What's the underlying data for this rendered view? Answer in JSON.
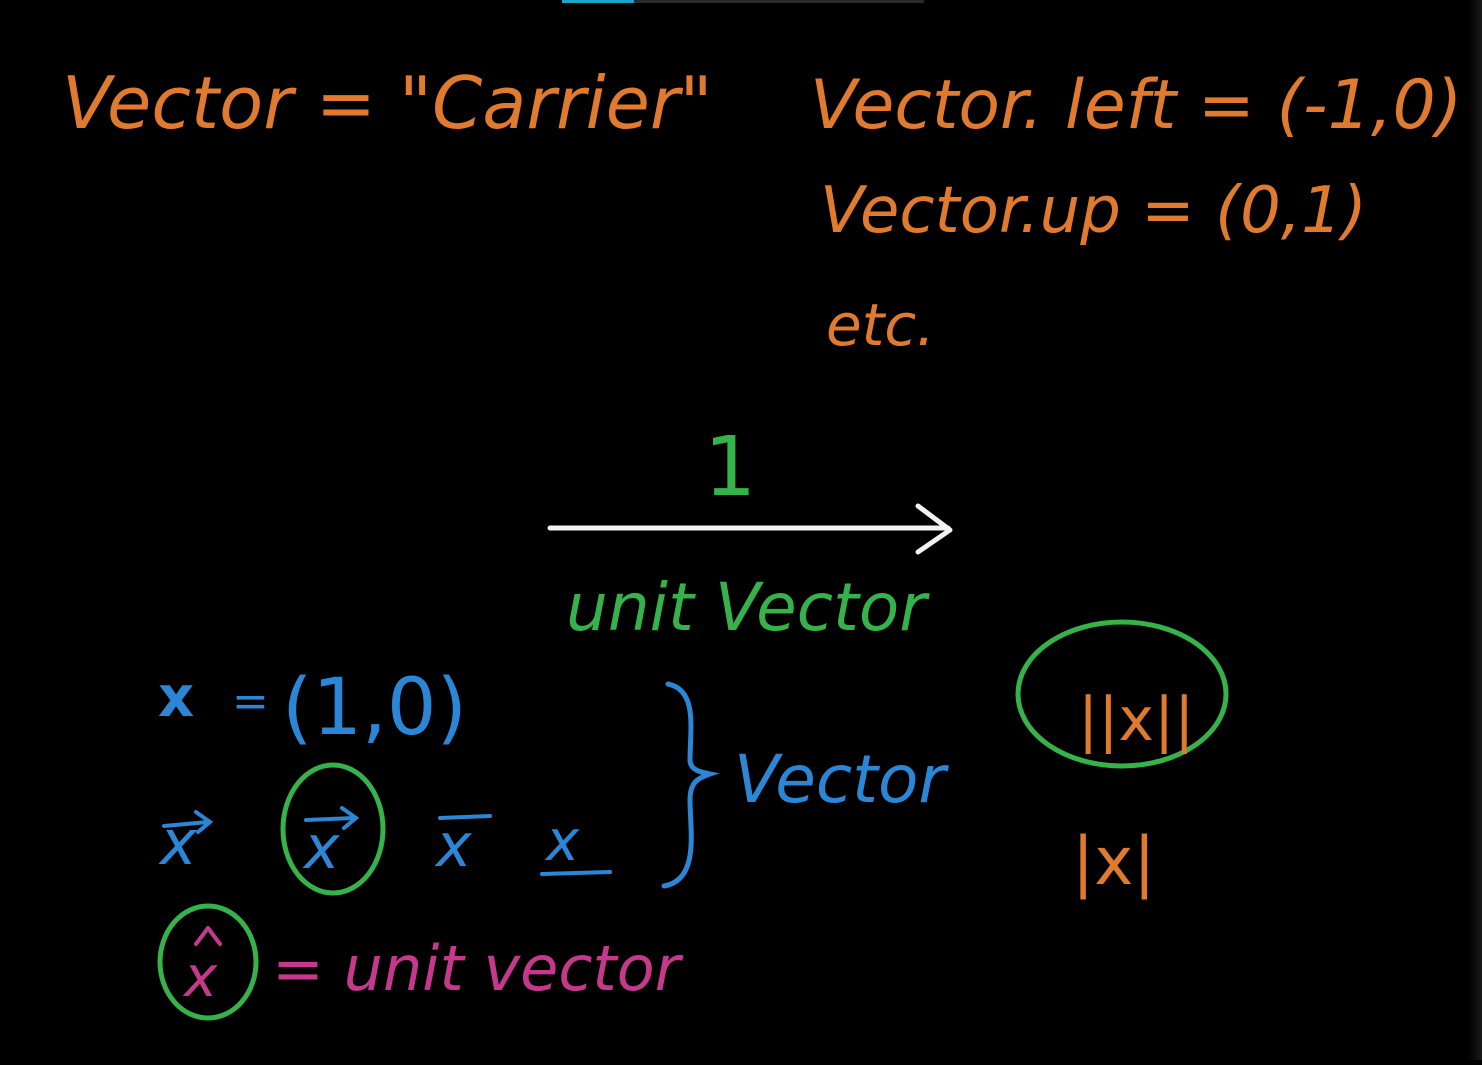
{
  "board": {
    "background": "#000000",
    "colors": {
      "orange": "#e07a2e",
      "green": "#35b24a",
      "blue": "#2b86d6",
      "magenta": "#c5388c",
      "white": "#f2f2f2",
      "accent": "#1aa6c9"
    },
    "top_left": {
      "line": "Vector = \"Carrier\""
    },
    "top_right": {
      "line1": "Vector. left = (-1,0)",
      "line2": "Vector.up = (0,1)",
      "line3": "etc."
    },
    "center": {
      "magnitude_label": "1",
      "caption": "unit Vector",
      "arrow_icon": "right-arrow-icon"
    },
    "notation": {
      "line1_var": "x",
      "line1_eq": "=",
      "line1_value": "(1,0)",
      "line2_a": "x",
      "line2_b": "x",
      "line2_c": "x",
      "line2_d": "x",
      "brace_label": "Vector",
      "hat_var": "x",
      "hat_eq": "= unit vector"
    },
    "magnitude": {
      "double_bar": "||x||",
      "single_bar": "|x|"
    }
  }
}
